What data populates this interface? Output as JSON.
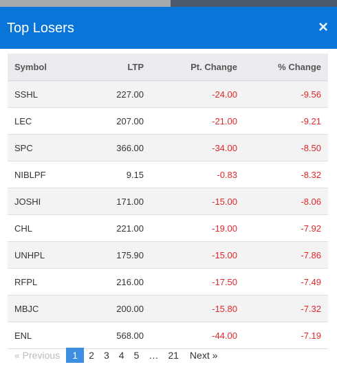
{
  "modal": {
    "title": "Top Losers",
    "close_glyph": "×"
  },
  "table": {
    "headers": {
      "symbol": "Symbol",
      "ltp": "LTP",
      "pt_change": "Pt. Change",
      "pct_change": "% Change"
    },
    "rows": [
      {
        "symbol": "SSHL",
        "ltp": "227.00",
        "pt_change": "-24.00",
        "pct_change": "-9.56"
      },
      {
        "symbol": "LEC",
        "ltp": "207.00",
        "pt_change": "-21.00",
        "pct_change": "-9.21"
      },
      {
        "symbol": "SPC",
        "ltp": "366.00",
        "pt_change": "-34.00",
        "pct_change": "-8.50"
      },
      {
        "symbol": "NIBLPF",
        "ltp": "9.15",
        "pt_change": "-0.83",
        "pct_change": "-8.32"
      },
      {
        "symbol": "JOSHI",
        "ltp": "171.00",
        "pt_change": "-15.00",
        "pct_change": "-8.06"
      },
      {
        "symbol": "CHL",
        "ltp": "221.00",
        "pt_change": "-19.00",
        "pct_change": "-7.92"
      },
      {
        "symbol": "UNHPL",
        "ltp": "175.90",
        "pt_change": "-15.00",
        "pct_change": "-7.86"
      },
      {
        "symbol": "RFPL",
        "ltp": "216.00",
        "pt_change": "-17.50",
        "pct_change": "-7.49"
      },
      {
        "symbol": "MBJC",
        "ltp": "200.00",
        "pt_change": "-15.80",
        "pct_change": "-7.32"
      },
      {
        "symbol": "ENL",
        "ltp": "568.00",
        "pt_change": "-44.00",
        "pct_change": "-7.19"
      }
    ]
  },
  "pagination": {
    "previous": "« Previous",
    "next": "Next »",
    "pages": [
      "1",
      "2",
      "3",
      "4",
      "5",
      "…",
      "21"
    ],
    "current": "1"
  },
  "colors": {
    "header_bg": "#0a75d8",
    "negative": "#e0262b",
    "active_page": "#3d8ee0"
  },
  "icons": {
    "close": "close-icon"
  }
}
